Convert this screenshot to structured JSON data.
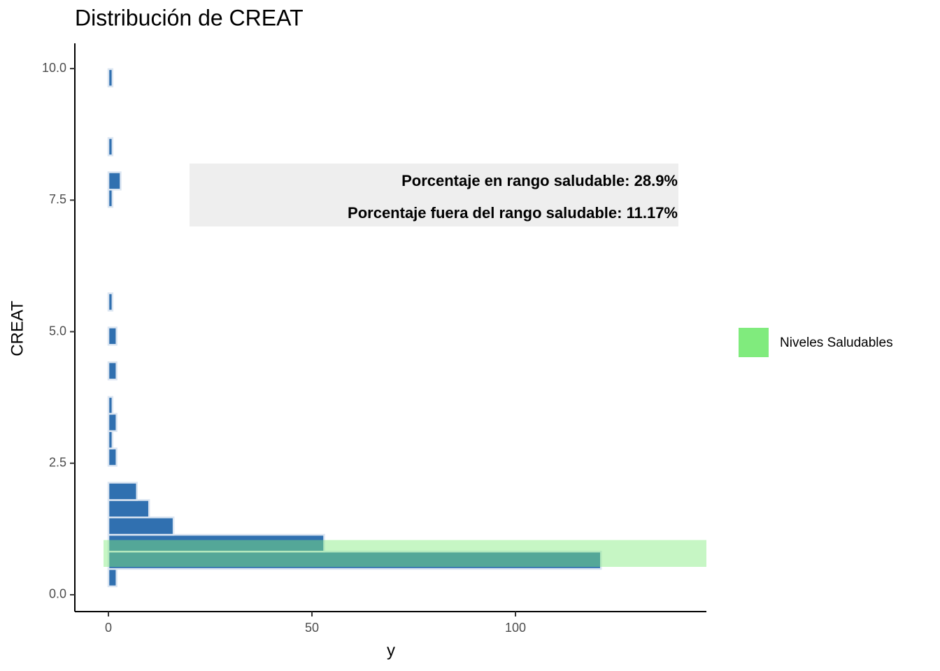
{
  "chart_data": {
    "type": "histogram",
    "orientation": "horizontal",
    "title": "Distribución de CREAT",
    "x_label": "y",
    "y_label": "CREAT",
    "bins": [
      0.16,
      0.49,
      0.82,
      1.14,
      1.47,
      1.8,
      2.13,
      2.45,
      2.78,
      3.11,
      3.44,
      3.76,
      4.09,
      4.42,
      4.75,
      5.08,
      5.4,
      5.73,
      6.06,
      6.39,
      6.71,
      7.04,
      7.37,
      7.7,
      8.03,
      8.35,
      8.68,
      9.01,
      9.34,
      9.66,
      9.99
    ],
    "values": [
      2,
      121,
      53,
      16,
      10,
      7,
      0,
      2,
      1,
      2,
      1,
      0,
      2,
      0,
      2,
      0,
      1,
      0,
      0,
      0,
      0,
      0,
      1,
      3,
      0,
      1,
      0,
      0,
      0,
      1
    ],
    "color": "#3070b0",
    "edge_color": "#dce6f2",
    "xlim": [
      -8.25,
      146.9
    ],
    "ylim": [
      -0.32,
      10.48
    ],
    "xticks": [
      0,
      50,
      100
    ],
    "yticks": [
      {
        "value": 0,
        "label": "0.0"
      },
      {
        "value": 2.5,
        "label": "2.5"
      },
      {
        "value": 5,
        "label": "5.0"
      },
      {
        "value": 7.5,
        "label": "7.5"
      },
      {
        "value": 10,
        "label": "10.0"
      }
    ],
    "band": {
      "name": "Niveles Saludables",
      "color": "#80eb7d",
      "range": [
        0.53,
        1.04
      ]
    },
    "annotations": [
      "Porcentaje en rango saludable: 28.9%",
      "Porcentaje fuera del rango saludable: 11.17%"
    ],
    "grid": false
  }
}
